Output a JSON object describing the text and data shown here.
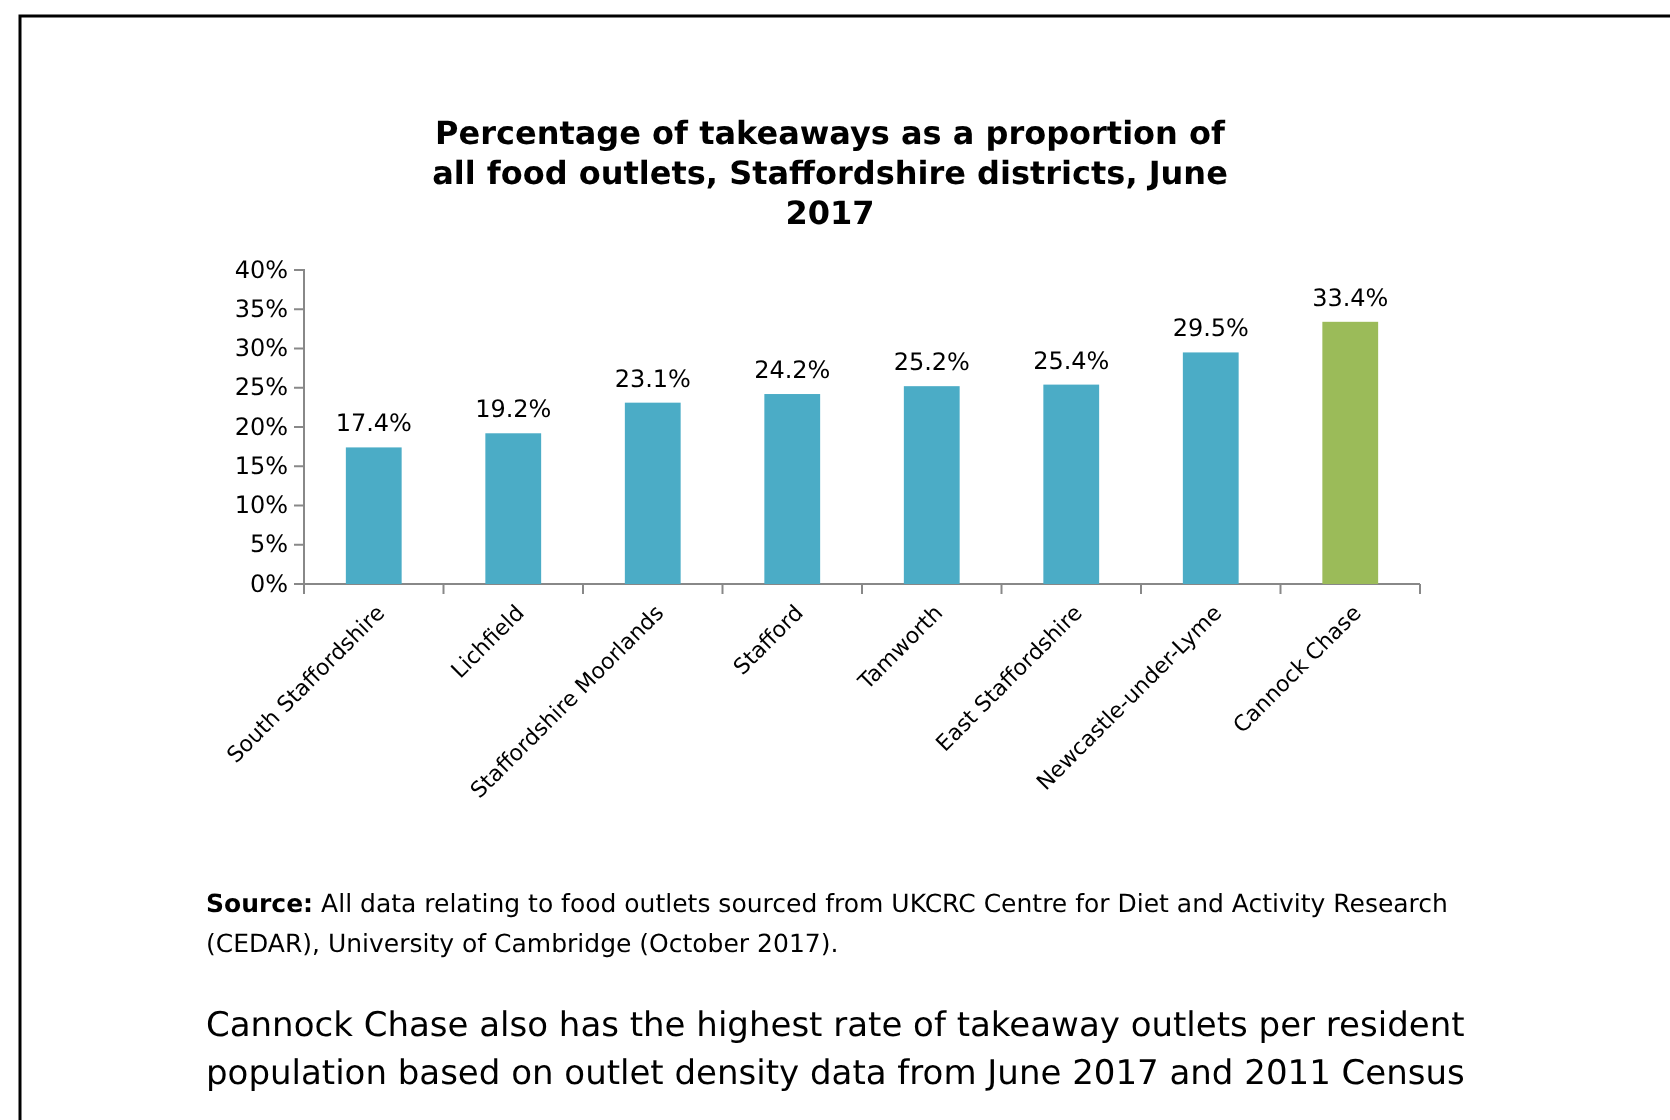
{
  "chart_data": {
    "type": "bar",
    "title": "Percentage of takeaways as a proportion of all food outlets, Staffordshire districts, June 2017",
    "categories": [
      "South Staffordshire",
      "Lichfield",
      "Staffordshire Moorlands",
      "Stafford",
      "Tamworth",
      "East Staffordshire",
      "Newcastle-under-Lyme",
      "Cannock Chase"
    ],
    "values": [
      17.4,
      19.2,
      23.1,
      24.2,
      25.2,
      25.4,
      29.5,
      33.4
    ],
    "colors": [
      "#4bacc6",
      "#4bacc6",
      "#4bacc6",
      "#4bacc6",
      "#4bacc6",
      "#4bacc6",
      "#4bacc6",
      "#9bbb59"
    ],
    "value_labels": [
      "17.4%",
      "19.2%",
      "23.1%",
      "24.2%",
      "25.2%",
      "25.4%",
      "29.5%",
      "33.4%"
    ],
    "ylim": [
      0,
      40
    ],
    "yticks": [
      {
        "value": 0,
        "label": "0%"
      },
      {
        "value": 5,
        "label": "5%"
      },
      {
        "value": 10,
        "label": "10%"
      },
      {
        "value": 15,
        "label": "15%"
      },
      {
        "value": 20,
        "label": "20%"
      },
      {
        "value": 25,
        "label": "25%"
      },
      {
        "value": 30,
        "label": "30%"
      },
      {
        "value": 35,
        "label": "35%"
      },
      {
        "value": 40,
        "label": "40%"
      }
    ],
    "grid": false,
    "annotations": [
      "Source: All data relating to food outlets sourced from UKCRC Centre for Diet and Activity Research (CEDAR), University of Cambridge (October 2017).",
      "Cannock Chase also has the highest rate of takeaway outlets per resident population based on outlet density data from June 2017 and 2011 Census"
    ]
  }
}
